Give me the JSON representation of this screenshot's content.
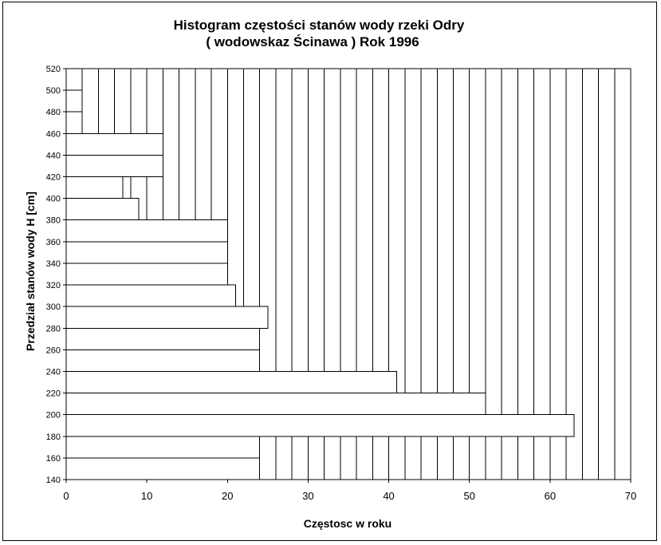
{
  "chart_data": {
    "type": "bar",
    "orientation": "horizontal",
    "title": "Histogram częstości stanów wody rzeki Odry",
    "subtitle": "( wodowskaz Ścinawa ) Rok 1996",
    "xlabel": "Częstosc w roku",
    "ylabel": "Przedział stanów wody H [cm]",
    "xlim": [
      0,
      70
    ],
    "ylim": [
      140,
      520
    ],
    "x_ticks": [
      0,
      10,
      20,
      30,
      40,
      50,
      60,
      70
    ],
    "y_ticks": [
      140,
      160,
      180,
      200,
      220,
      240,
      260,
      280,
      300,
      320,
      340,
      360,
      380,
      400,
      420,
      440,
      460,
      480,
      500,
      520
    ],
    "vertical_gridline_step": 2,
    "bins": [
      {
        "from": 140,
        "to": 160,
        "value": 24
      },
      {
        "from": 160,
        "to": 180,
        "value": 24
      },
      {
        "from": 180,
        "to": 200,
        "value": 63
      },
      {
        "from": 200,
        "to": 220,
        "value": 52
      },
      {
        "from": 220,
        "to": 240,
        "value": 41
      },
      {
        "from": 240,
        "to": 260,
        "value": 24
      },
      {
        "from": 260,
        "to": 280,
        "value": 24
      },
      {
        "from": 280,
        "to": 300,
        "value": 25
      },
      {
        "from": 300,
        "to": 320,
        "value": 21
      },
      {
        "from": 320,
        "to": 340,
        "value": 20
      },
      {
        "from": 340,
        "to": 360,
        "value": 20
      },
      {
        "from": 360,
        "to": 380,
        "value": 20
      },
      {
        "from": 380,
        "to": 400,
        "value": 9
      },
      {
        "from": 400,
        "to": 420,
        "value": 7
      },
      {
        "from": 420,
        "to": 440,
        "value": 12
      },
      {
        "from": 440,
        "to": 460,
        "value": 12
      },
      {
        "from": 460,
        "to": 480,
        "value": 2
      },
      {
        "from": 480,
        "to": 500,
        "value": 2
      },
      {
        "from": 500,
        "to": 520,
        "value": 2
      }
    ],
    "colors": {
      "bar_fill": "#ffffff",
      "stroke": "#000000",
      "background": "#ffffff"
    }
  }
}
